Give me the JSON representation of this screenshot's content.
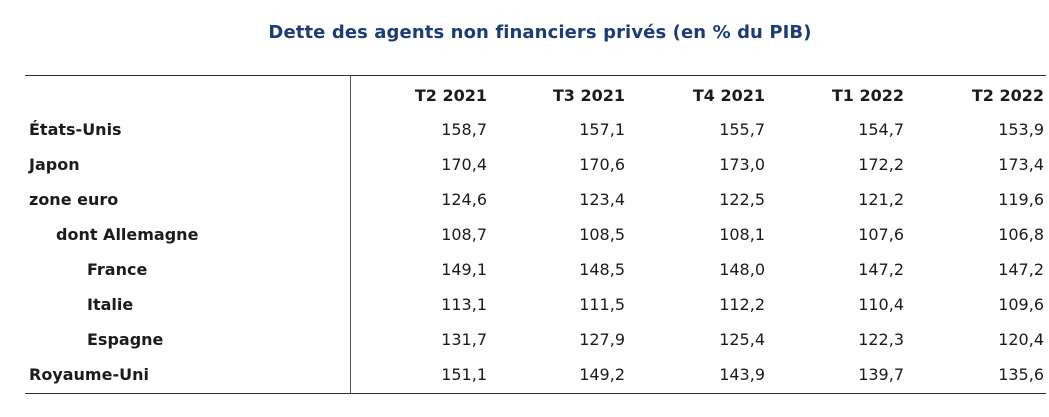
{
  "chart_data": {
    "type": "table",
    "title": "Dette des agents non financiers privés (en % du PIB)",
    "columns": [
      "T2 2021",
      "T3 2021",
      "T4 2021",
      "T1 2022",
      "T2 2022"
    ],
    "rows": [
      {
        "label": "États-Unis",
        "indent": 0,
        "values": [
          "158,7",
          "157,1",
          "155,7",
          "154,7",
          "153,9"
        ]
      },
      {
        "label": "Japon",
        "indent": 0,
        "values": [
          "170,4",
          "170,6",
          "173,0",
          "172,2",
          "173,4"
        ]
      },
      {
        "label": "zone euro",
        "indent": 0,
        "values": [
          "124,6",
          "123,4",
          "122,5",
          "121,2",
          "119,6"
        ]
      },
      {
        "label": "dont Allemagne",
        "indent": 1,
        "values": [
          "108,7",
          "108,5",
          "108,1",
          "107,6",
          "106,8"
        ]
      },
      {
        "label": "France",
        "indent": 2,
        "values": [
          "149,1",
          "148,5",
          "148,0",
          "147,2",
          "147,2"
        ]
      },
      {
        "label": "Italie",
        "indent": 2,
        "values": [
          "113,1",
          "111,5",
          "112,2",
          "110,4",
          "109,6"
        ]
      },
      {
        "label": "Espagne",
        "indent": 2,
        "values": [
          "131,7",
          "127,9",
          "125,4",
          "122,3",
          "120,4"
        ]
      },
      {
        "label": "Royaume-Uni",
        "indent": 0,
        "values": [
          "151,1",
          "149,2",
          "143,9",
          "139,7",
          "135,6"
        ]
      }
    ]
  }
}
